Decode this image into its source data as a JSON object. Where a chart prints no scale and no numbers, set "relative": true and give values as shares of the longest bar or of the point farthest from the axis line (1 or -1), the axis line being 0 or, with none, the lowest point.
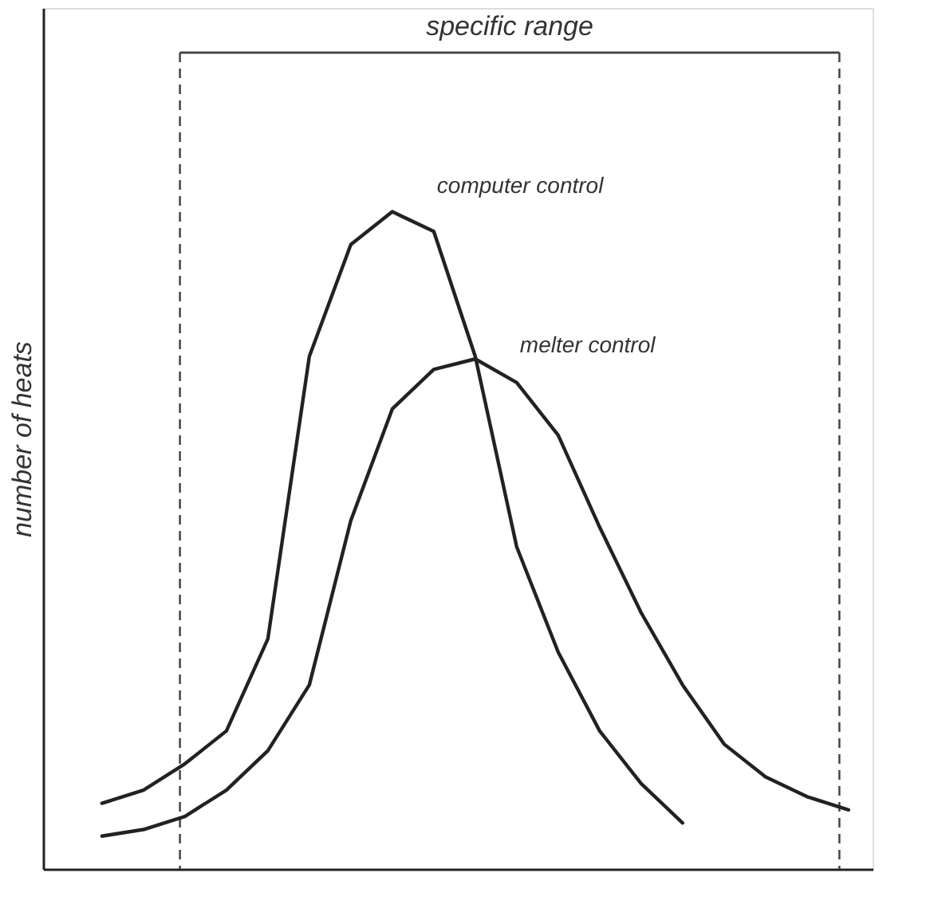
{
  "chart_data": {
    "type": "line",
    "relative": true,
    "ylabel": "number of heats",
    "legend": false,
    "grid": false,
    "marker": "none",
    "line_style": "solid",
    "categories": [
      null,
      null,
      null,
      null,
      null,
      null,
      null,
      null,
      null,
      null,
      null,
      null,
      null,
      null,
      null,
      null,
      null,
      null,
      null
    ],
    "series": [
      {
        "name": "computer control",
        "color": "#222222",
        "values": [
          0.1,
          0.12,
          0.16,
          0.21,
          0.35,
          0.78,
          0.95,
          1.0,
          0.97,
          0.78,
          0.49,
          0.33,
          0.21,
          0.13,
          0.07,
          null,
          null,
          null,
          null
        ]
      },
      {
        "name": "melter control",
        "color": "#222222",
        "values": [
          0.05,
          0.06,
          0.08,
          0.12,
          0.18,
          0.28,
          0.53,
          0.7,
          0.76,
          0.776,
          0.74,
          0.66,
          0.52,
          0.39,
          0.28,
          0.19,
          0.14,
          0.11,
          0.09
        ]
      }
    ],
    "annotations": [
      "specific range"
    ]
  }
}
